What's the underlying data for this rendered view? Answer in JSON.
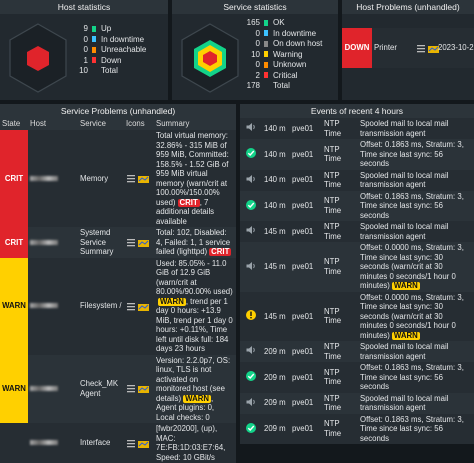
{
  "host_statistics": {
    "title": "Host statistics",
    "items": [
      {
        "count": 9,
        "label": "Up",
        "color": "#13d389"
      },
      {
        "count": 0,
        "label": "In downtime",
        "color": "#3cc2ff"
      },
      {
        "count": 0,
        "label": "Unreachable",
        "color": "#ff8c00"
      },
      {
        "count": 1,
        "label": "Down",
        "color": "#ff3232"
      },
      {
        "count": 10,
        "label": "Total"
      }
    ]
  },
  "service_statistics": {
    "title": "Service statistics",
    "items": [
      {
        "count": 165,
        "label": "OK",
        "color": "#13d389"
      },
      {
        "count": 0,
        "label": "In downtime",
        "color": "#3cc2ff"
      },
      {
        "count": 0,
        "label": "On down host",
        "color": "#888888"
      },
      {
        "count": 10,
        "label": "Warning",
        "color": "#ffd000"
      },
      {
        "count": 0,
        "label": "Unknown",
        "color": "#ff8c00"
      },
      {
        "count": 2,
        "label": "Critical",
        "color": "#ff3232"
      },
      {
        "count": 178,
        "label": "Total"
      }
    ]
  },
  "host_problems": {
    "title": "Host Problems (unhandled)",
    "rows": [
      {
        "state": "DOWN",
        "host": "Printer",
        "since": "2023-10-2"
      }
    ]
  },
  "service_problems": {
    "title": "Service Problems (unhandled)",
    "columns": [
      "State",
      "Host",
      "Service",
      "Icons",
      "Summary"
    ],
    "rows": [
      {
        "state": "CRIT",
        "service": "Memory",
        "summary": "Total virtual memory: 32.86% - 315 MiB of 959 MiB, Committed: 158.5% - 1.52 GiB of 959 MiB virtual memory (warn/crit at 100.00%/150.00% used)",
        "badge": "CRIT",
        "summary_after": ", 7 additional details available"
      },
      {
        "state": "CRIT",
        "service": "Systemd Service Summary",
        "summary": "Total: 102, Disabled: 4, Failed: 1, 1 service failed (lighttpd)",
        "badge": "CRIT"
      },
      {
        "state": "WARN",
        "service": "Filesystem /",
        "summary": "Used: 85.05% - 11.0 GiB of 12.9 GiB (warn/crit at 80.00%/90.00% used)",
        "badge": "WARN",
        "summary_after": ", trend per 1 day 0 hours: +13.9 MiB, trend per 1 day 0 hours: +0.11%, Time left until disk full: 184 days 23 hours"
      },
      {
        "state": "WARN",
        "service": "Check_MK Agent",
        "summary": "Version: 2.2.0p7, OS: linux, TLS is not activated on monitored host (see details)",
        "badge": "WARN",
        "summary_after": ", Agent plugins: 0, Local checks: 0"
      },
      {
        "service": "Interface",
        "summary": "[fwbr20200], (up), MAC: 7E:FB:1D:03:E7:64, Speed: 10 GBit/s"
      }
    ]
  },
  "events": {
    "title": "Events of recent 4 hours",
    "rows": [
      {
        "icon": "notify",
        "time": "140 m",
        "host": "pve01",
        "service": "NTP Time",
        "summary": "Spooled mail to local mail transmission agent"
      },
      {
        "icon": "ok",
        "time": "140 m",
        "host": "pve01",
        "service": "NTP Time",
        "summary": "Offset: 0.1863 ms, Stratum: 3, Time since last sync: 56 seconds"
      },
      {
        "icon": "notify",
        "time": "140 m",
        "host": "pve01",
        "service": "NTP Time",
        "summary": "Spooled mail to local mail transmission agent"
      },
      {
        "icon": "ok",
        "time": "140 m",
        "host": "pve01",
        "service": "NTP Time",
        "summary": "Offset: 0.1863 ms, Stratum: 3, Time since last sync: 56 seconds"
      },
      {
        "icon": "notify",
        "time": "145 m",
        "host": "pve01",
        "service": "NTP Time",
        "summary": "Spooled mail to local mail transmission agent"
      },
      {
        "icon": "notify",
        "time": "145 m",
        "host": "pve01",
        "service": "NTP Time",
        "summary": "Offset: 0.0000 ms, Stratum: 3, Time since last sync: 30 seconds (warn/crit at 30 minutes 0 seconds/1 hour 0 minutes)",
        "badge": "WARN"
      },
      {
        "icon": "warn",
        "time": "145 m",
        "host": "pve01",
        "service": "NTP Time",
        "summary": "Offset: 0.0000 ms, Stratum: 3, Time since last sync: 30 seconds (warn/crit at 30 minutes 0 seconds/1 hour 0 minutes)",
        "badge": "WARN"
      },
      {
        "icon": "notify",
        "time": "209 m",
        "host": "pve01",
        "service": "NTP Time",
        "summary": "Spooled mail to local mail transmission agent"
      },
      {
        "icon": "ok",
        "time": "209 m",
        "host": "pve01",
        "service": "NTP Time",
        "summary": "Offset: 0.1863 ms, Stratum: 3, Time since last sync: 56 seconds"
      },
      {
        "icon": "notify",
        "time": "209 m",
        "host": "pve01",
        "service": "NTP Time",
        "summary": "Spooled mail to local mail transmission agent"
      },
      {
        "icon": "ok",
        "time": "209 m",
        "host": "pve01",
        "service": "NTP Time",
        "summary": "Offset: 0.1863 ms, Stratum: 3, Time since last sync: 56 seconds"
      }
    ]
  }
}
